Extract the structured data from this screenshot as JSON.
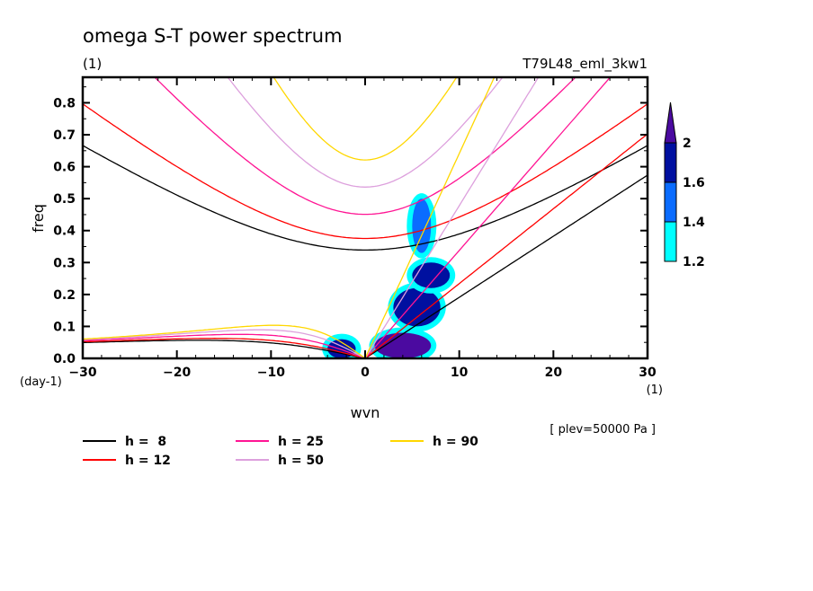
{
  "chart_data": {
    "type": "line",
    "title": "omega S-T power spectrum",
    "subtitle_left": "(1)",
    "subtitle_right": "T79L48_eml_3kw1",
    "xlabel": "wvn",
    "ylabel": "freq",
    "x_unit": "(1)",
    "y_unit": "(day-1)",
    "annotation": "[ plev=50000 Pa ]",
    "xlim": [
      -30,
      30
    ],
    "ylim": [
      0,
      0.88
    ],
    "x_ticks": [
      -30,
      -20,
      -10,
      0,
      10,
      20,
      30
    ],
    "x_tick_labels": [
      "−30",
      "−20",
      "−10",
      "0",
      "10",
      "20",
      "30"
    ],
    "y_ticks": [
      0.0,
      0.1,
      0.2,
      0.3,
      0.4,
      0.5,
      0.6,
      0.7,
      0.8
    ],
    "y_tick_labels": [
      "0.0",
      "0.1",
      "0.2",
      "0.3",
      "0.4",
      "0.5",
      "0.6",
      "0.7",
      "0.8"
    ],
    "grid": false,
    "colorbar": {
      "levels": [
        1.2,
        1.4,
        1.6,
        2
      ],
      "labels": [
        "1.2",
        "1.4",
        "1.6",
        "2"
      ],
      "colors": [
        "#00ffff",
        "#0a6cff",
        "#0010a0",
        "#4b0aa0"
      ],
      "extend": "max",
      "position": "right"
    },
    "dispersion_curves": [
      {
        "h": 8,
        "label": "h =  8",
        "color": "#000000"
      },
      {
        "h": 12,
        "label": "h = 12",
        "color": "#ff0000"
      },
      {
        "h": 25,
        "label": "h = 25",
        "color": "#ff1493"
      },
      {
        "h": 50,
        "label": "h = 50",
        "color": "#dda0dd"
      },
      {
        "h": 90,
        "label": "h = 90",
        "color": "#ffd700"
      }
    ],
    "shaded_regions": [
      {
        "wvn": [
          1,
          7
        ],
        "freq": [
          0.0,
          0.08
        ],
        "level": 2
      },
      {
        "wvn": [
          3,
          8
        ],
        "freq": [
          0.1,
          0.22
        ],
        "level": 1.6
      },
      {
        "wvn": [
          5,
          9
        ],
        "freq": [
          0.22,
          0.3
        ],
        "level": 1.6
      },
      {
        "wvn": [
          -4,
          -1
        ],
        "freq": [
          0.0,
          0.06
        ],
        "level": 1.6
      },
      {
        "wvn": [
          5,
          7
        ],
        "freq": [
          0.33,
          0.5
        ],
        "level": 1.4
      }
    ],
    "legend_position": "bottom"
  }
}
